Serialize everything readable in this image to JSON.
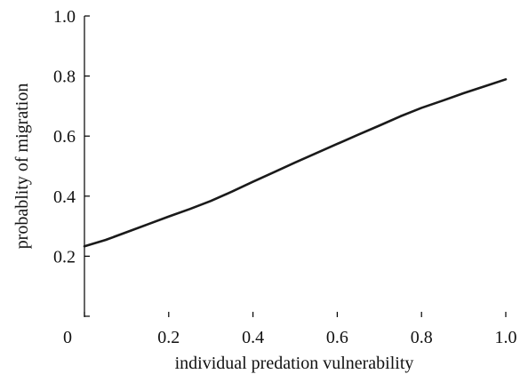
{
  "chart_data": {
    "type": "line",
    "title": "",
    "xlabel": "individual predation vulnerability",
    "ylabel": "probablity of migration",
    "xlim": [
      0,
      1.0
    ],
    "ylim": [
      0,
      1.0
    ],
    "x_ticks": [
      0,
      0.2,
      0.4,
      0.6,
      0.8,
      1.0
    ],
    "x_tick_labels": [
      "0",
      "0.2",
      "0.4",
      "0.6",
      "0.8",
      "1.0"
    ],
    "y_ticks": [
      0,
      0.2,
      0.4,
      0.6,
      0.8,
      1.0
    ],
    "y_tick_labels": [
      "",
      "0.2",
      "0.4",
      "0.6",
      "0.8",
      "1.0"
    ],
    "grid": false,
    "legend": "none",
    "series": [
      {
        "color": "#1a1a1a",
        "x": [
          0,
          0.05,
          0.1,
          0.15,
          0.2,
          0.25,
          0.3,
          0.35,
          0.4,
          0.45,
          0.5,
          0.55,
          0.6,
          0.65,
          0.7,
          0.75,
          0.8,
          0.85,
          0.9,
          0.95,
          1.0
        ],
        "y": [
          0.233,
          0.254,
          0.28,
          0.306,
          0.332,
          0.357,
          0.384,
          0.415,
          0.448,
          0.48,
          0.512,
          0.543,
          0.574,
          0.605,
          0.635,
          0.666,
          0.694,
          0.718,
          0.743,
          0.766,
          0.789
        ]
      }
    ]
  }
}
